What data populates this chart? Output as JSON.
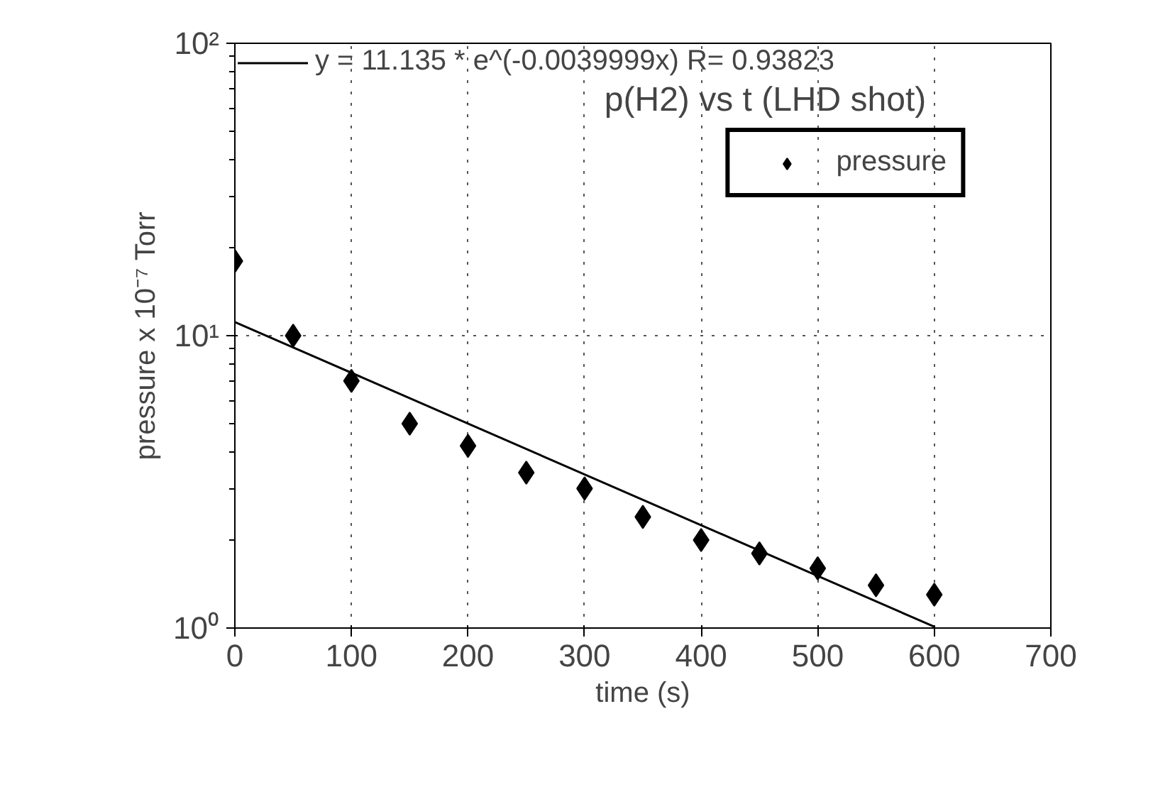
{
  "chart_data": {
    "type": "scatter",
    "title": "p(H2) vs t (LHD shot)",
    "xlabel": "time (s)",
    "ylabel": "pressure x 10⁻⁷ Torr",
    "x": [
      0,
      50,
      100,
      150,
      200,
      250,
      300,
      350,
      400,
      450,
      500,
      550,
      600
    ],
    "series": [
      {
        "name": "pressure",
        "marker": "diamond",
        "color": "#000000",
        "values": [
          18,
          10,
          7.0,
          5.0,
          4.2,
          3.4,
          3.0,
          2.4,
          2.0,
          1.8,
          1.6,
          1.4,
          1.3
        ]
      },
      {
        "name": "y = 11.135 * e^(-0.0039999x) R= 0.93823",
        "type": "line",
        "color": "#000000",
        "x": [
          0,
          600
        ],
        "values": [
          11.135,
          1.01
        ]
      }
    ],
    "log": "y",
    "xlim": [
      0,
      700
    ],
    "ylim": [
      1,
      100
    ],
    "xticks": [
      0,
      100,
      200,
      300,
      400,
      500,
      600,
      700
    ],
    "yticks": [
      {
        "value": 1,
        "label": "10⁰"
      },
      {
        "value": 10,
        "label": "10¹"
      },
      {
        "value": 100,
        "label": "10²"
      }
    ],
    "grid": true,
    "legend": "top"
  }
}
